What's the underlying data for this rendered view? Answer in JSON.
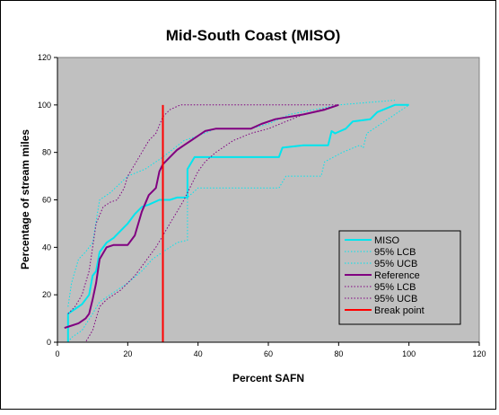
{
  "chart_data": {
    "type": "line",
    "title": "Mid-South Coast (MISO)",
    "xlabel": "Percent SAFN",
    "ylabel": "Percentage of stream miles",
    "xlim": [
      0,
      120
    ],
    "ylim": [
      0,
      120
    ],
    "xticks": [
      "0",
      "20",
      "40",
      "60",
      "80",
      "100",
      "120"
    ],
    "yticks": [
      "0",
      "20",
      "40",
      "60",
      "80",
      "100",
      "120"
    ],
    "grid": false,
    "legend_position": "right",
    "colors": {
      "plot_area": "#c0c0c0",
      "miso": "#00e5ee",
      "reference": "#800080",
      "break_point": "#ff0000"
    },
    "series": [
      {
        "name": "MISO",
        "color": "#00e5ee",
        "style": "solid",
        "width": 2,
        "points": [
          [
            3,
            0
          ],
          [
            3,
            12
          ],
          [
            5,
            14
          ],
          [
            7,
            16
          ],
          [
            9,
            20
          ],
          [
            10,
            28
          ],
          [
            11,
            30
          ],
          [
            12,
            38
          ],
          [
            14,
            42
          ],
          [
            16,
            44
          ],
          [
            18,
            47
          ],
          [
            20,
            50
          ],
          [
            22,
            54
          ],
          [
            24,
            57
          ],
          [
            26,
            58
          ],
          [
            29,
            60
          ],
          [
            32,
            60
          ],
          [
            34,
            61
          ],
          [
            37,
            61
          ],
          [
            37,
            73
          ],
          [
            39,
            78
          ],
          [
            45,
            78
          ],
          [
            55,
            78
          ],
          [
            63,
            78
          ],
          [
            64,
            82
          ],
          [
            70,
            83
          ],
          [
            77,
            83
          ],
          [
            78,
            89
          ],
          [
            79,
            88
          ],
          [
            82,
            90
          ],
          [
            84,
            93
          ],
          [
            89,
            94
          ],
          [
            91,
            97
          ],
          [
            96,
            100
          ],
          [
            100,
            100
          ]
        ]
      },
      {
        "name": "95% LCB",
        "color": "#00e5ee",
        "style": "dotted",
        "width": 1,
        "points": [
          [
            3,
            0
          ],
          [
            4,
            2
          ],
          [
            7,
            5
          ],
          [
            10,
            12
          ],
          [
            12,
            17
          ],
          [
            16,
            21
          ],
          [
            20,
            25
          ],
          [
            24,
            30
          ],
          [
            27,
            35
          ],
          [
            30,
            38
          ],
          [
            34,
            42
          ],
          [
            37,
            43
          ],
          [
            37,
            61
          ],
          [
            40,
            65
          ],
          [
            55,
            65
          ],
          [
            63,
            65
          ],
          [
            65,
            70
          ],
          [
            75,
            70
          ],
          [
            76,
            76
          ],
          [
            81,
            80
          ],
          [
            86,
            83
          ],
          [
            87,
            82
          ],
          [
            88,
            88
          ],
          [
            96,
            96
          ],
          [
            100,
            100
          ]
        ]
      },
      {
        "name": "95% UCB",
        "color": "#00e5ee",
        "style": "dotted",
        "width": 1,
        "points": [
          [
            3,
            15
          ],
          [
            4,
            25
          ],
          [
            6,
            35
          ],
          [
            8,
            38
          ],
          [
            10,
            42
          ],
          [
            12,
            60
          ],
          [
            15,
            63
          ],
          [
            20,
            70
          ],
          [
            25,
            73
          ],
          [
            30,
            78
          ],
          [
            36,
            85
          ],
          [
            40,
            87
          ],
          [
            45,
            90
          ],
          [
            55,
            90
          ],
          [
            60,
            92
          ],
          [
            66,
            96
          ],
          [
            80,
            100
          ],
          [
            96,
            102
          ]
        ]
      },
      {
        "name": "Reference",
        "color": "#800080",
        "style": "solid",
        "width": 2,
        "points": [
          [
            2,
            6
          ],
          [
            4,
            7
          ],
          [
            6,
            8
          ],
          [
            8,
            10
          ],
          [
            9,
            12
          ],
          [
            10,
            18
          ],
          [
            11,
            25
          ],
          [
            12,
            35
          ],
          [
            14,
            40
          ],
          [
            16,
            41
          ],
          [
            18,
            41
          ],
          [
            20,
            41
          ],
          [
            22,
            45
          ],
          [
            24,
            55
          ],
          [
            26,
            62
          ],
          [
            28,
            65
          ],
          [
            29,
            72
          ],
          [
            30,
            75
          ],
          [
            32,
            78
          ],
          [
            34,
            81
          ],
          [
            36,
            83
          ],
          [
            38,
            85
          ],
          [
            40,
            87
          ],
          [
            42,
            89
          ],
          [
            45,
            90
          ],
          [
            55,
            90
          ],
          [
            58,
            92
          ],
          [
            62,
            94
          ],
          [
            70,
            96
          ],
          [
            76,
            98
          ],
          [
            80,
            100
          ]
        ]
      },
      {
        "name": "95% LCB",
        "color": "#800080",
        "style": "dotted",
        "width": 1,
        "points": [
          [
            3,
            0
          ],
          [
            8,
            0
          ],
          [
            10,
            5
          ],
          [
            11,
            10
          ],
          [
            12,
            15
          ],
          [
            14,
            18
          ],
          [
            16,
            20
          ],
          [
            18,
            22
          ],
          [
            20,
            25
          ],
          [
            22,
            28
          ],
          [
            24,
            32
          ],
          [
            26,
            36
          ],
          [
            28,
            40
          ],
          [
            30,
            45
          ],
          [
            32,
            50
          ],
          [
            34,
            55
          ],
          [
            36,
            60
          ],
          [
            38,
            66
          ],
          [
            40,
            72
          ],
          [
            42,
            76
          ],
          [
            45,
            80
          ],
          [
            50,
            85
          ],
          [
            55,
            88
          ],
          [
            60,
            90
          ],
          [
            65,
            93
          ],
          [
            70,
            96
          ],
          [
            75,
            98
          ],
          [
            80,
            100
          ]
        ]
      },
      {
        "name": "95% UCB",
        "color": "#800080",
        "style": "dotted",
        "width": 1,
        "points": [
          [
            3,
            12
          ],
          [
            5,
            15
          ],
          [
            7,
            20
          ],
          [
            9,
            30
          ],
          [
            11,
            50
          ],
          [
            13,
            57
          ],
          [
            15,
            59
          ],
          [
            17,
            60
          ],
          [
            19,
            65
          ],
          [
            20,
            70
          ],
          [
            22,
            75
          ],
          [
            24,
            80
          ],
          [
            26,
            85
          ],
          [
            28,
            88
          ],
          [
            30,
            95
          ],
          [
            32,
            98
          ],
          [
            35,
            100
          ],
          [
            40,
            100
          ],
          [
            60,
            100
          ],
          [
            80,
            100
          ]
        ]
      }
    ],
    "break_point": {
      "name": "Break point",
      "x": 30,
      "y_range": [
        0,
        100
      ],
      "color": "#ff0000"
    }
  }
}
